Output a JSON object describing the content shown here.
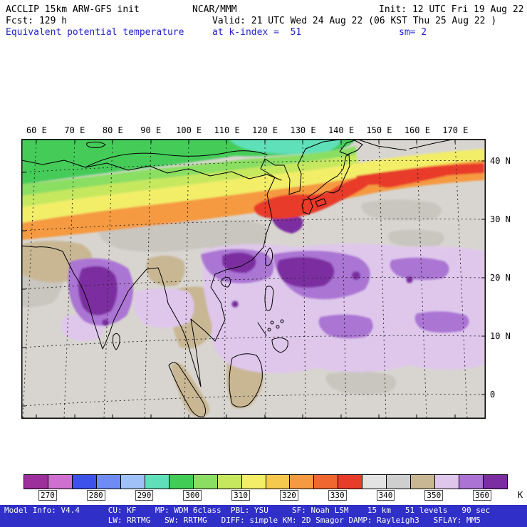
{
  "header": {
    "model": "ACCLIP 15km ARW-GFS init",
    "center": "NCAR/MMM",
    "init": "Init: 12 UTC Fri 19 Aug 22",
    "fcst": "Fcst: 129 h",
    "valid": "Valid: 21 UTC Wed 24 Aug 22 (06 KST Thu 25 Aug 22 )",
    "field": "Equivalent potential temperature",
    "level": "at k-index =  51",
    "smooth": "sm= 2"
  },
  "map": {
    "lon_labels": [
      "60 E",
      "70 E",
      "80 E",
      "90 E",
      "100 E",
      "110 E",
      "120 E",
      "130 E",
      "140 E",
      "150 E",
      "160 E",
      "170 E"
    ],
    "lat_labels": [
      "40 N",
      "30 N",
      "20 N",
      "10 N",
      "0"
    ]
  },
  "colorbar": {
    "colors": [
      "#9c2f9c",
      "#cf6fcf",
      "#3c52e8",
      "#6f8cf5",
      "#9fc1f7",
      "#5fe0b8",
      "#41cc55",
      "#8ade62",
      "#c6e85e",
      "#f2ee68",
      "#f5c84e",
      "#f59a40",
      "#f0672f",
      "#e83b2a",
      "#e3e3e3",
      "#cfcfcf",
      "#c9b794",
      "#dfc7ec",
      "#ab74d4",
      "#7b2da1"
    ],
    "ticks": [
      "270",
      "280",
      "290",
      "300",
      "310",
      "320",
      "330",
      "340",
      "350",
      "360"
    ],
    "unit": "K"
  },
  "footer": {
    "line1": "Model Info: V4.4      CU: KF    MP: WDM 6class  PBL: YSU     SF: Noah LSM    15 km   51 levels   90 sec",
    "line2": "                      LW: RRTMG   SW: RRTMG   DIFF: simple KM: 2D Smagor DAMP: Rayleigh3   SFLAY: MM5"
  },
  "colors": {
    "header_accent": "#2323cc",
    "footer_bg": "#3030c8",
    "map_background": "#d8d5d0"
  }
}
